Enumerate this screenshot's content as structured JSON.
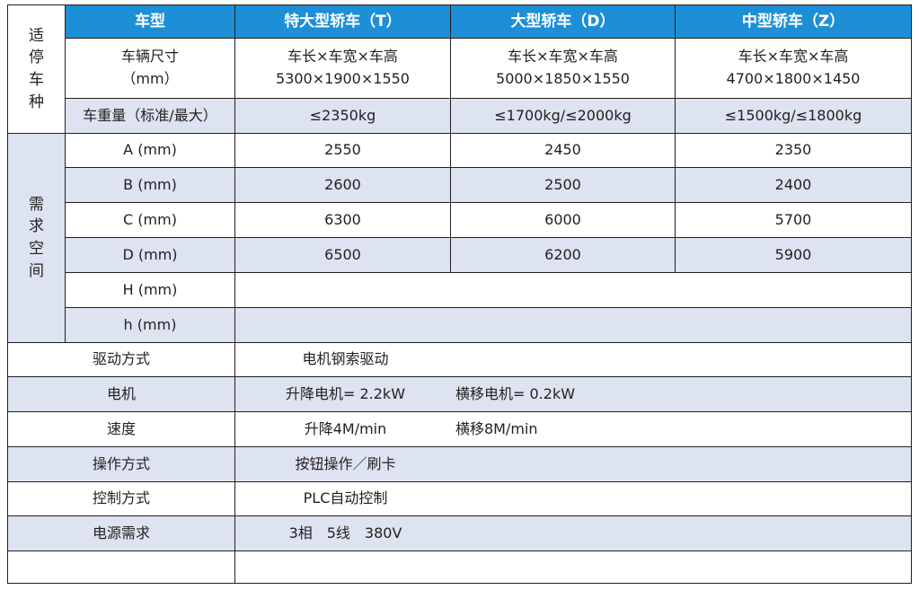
{
  "header": {
    "group_label": [
      "适",
      "停",
      "车",
      "种"
    ],
    "col_type": "车型",
    "col_t": "特大型轿车（T）",
    "col_d": "大型轿车（D）",
    "col_z": "中型轿车（Z）"
  },
  "size_row": {
    "label_line1": "车辆尺寸",
    "label_line2": "（mm）",
    "t_line1": "车长×车宽×车高",
    "t_line2": "5300×1900×1550",
    "d_line1": "车长×车宽×车高",
    "d_line2": "5000×1850×1550",
    "z_line1": "车长×车宽×车高",
    "z_line2": "4700×1800×1450"
  },
  "weight_row": {
    "label": "车重量（标准/最大）",
    "t": "≤2350kg",
    "d": "≤1700kg/≤2000kg",
    "z": "≤1500kg/≤1800kg"
  },
  "space": {
    "group_label": [
      "需",
      "求",
      "空",
      "间"
    ],
    "rows": [
      {
        "label": "A (mm)",
        "t": "2550",
        "d": "2450",
        "z": "2350"
      },
      {
        "label": "B (mm)",
        "t": "2600",
        "d": "2500",
        "z": "2400"
      },
      {
        "label": "C (mm)",
        "t": "6300",
        "d": "6000",
        "z": "5700"
      },
      {
        "label": "D (mm)",
        "t": "6500",
        "d": "6200",
        "z": "5900"
      },
      {
        "label": "H (mm)"
      },
      {
        "label": "h (mm)"
      }
    ]
  },
  "specs": [
    {
      "label": "驱动方式",
      "v1": "电机钢索驱动",
      "v2": ""
    },
    {
      "label": "电机",
      "v1": "升降电机= 2.2kW",
      "v2": "横移电机= 0.2kW"
    },
    {
      "label": "速度",
      "v1": "升降4M/min",
      "v2": "横移8M/min"
    },
    {
      "label": "操作方式",
      "v1": "按钮操作／刷卡",
      "v2": ""
    },
    {
      "label": "控制方式",
      "v1": "PLC自动控制",
      "v2": ""
    },
    {
      "label": "电源需求",
      "v1": "3相　5线　380V",
      "v2": ""
    },
    {
      "label": "",
      "v1": "",
      "v2": ""
    }
  ]
}
